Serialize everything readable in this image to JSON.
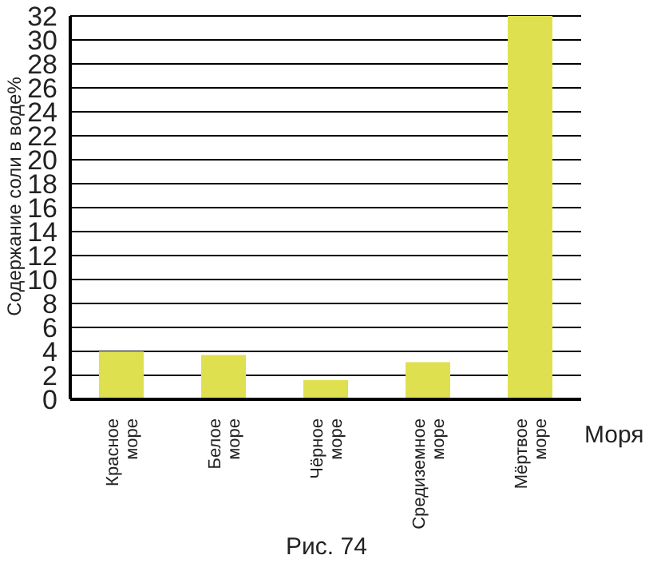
{
  "chart_data": {
    "type": "bar",
    "title": "Рис. 74",
    "xlabel": "Моря",
    "ylabel": "Содержание соли в воде%",
    "categories": [
      "Красное море",
      "Белое море",
      "Чёрное море",
      "Средиземное море",
      "Мёртвое море"
    ],
    "values": [
      4,
      3.7,
      1.6,
      3.1,
      32
    ],
    "color": "#dfe04f",
    "ylim": [
      0,
      32
    ],
    "yticks": [
      0,
      2,
      4,
      6,
      8,
      10,
      12,
      14,
      16,
      18,
      20,
      22,
      24,
      26,
      28,
      30,
      32
    ],
    "grid": "y",
    "legend": false
  }
}
